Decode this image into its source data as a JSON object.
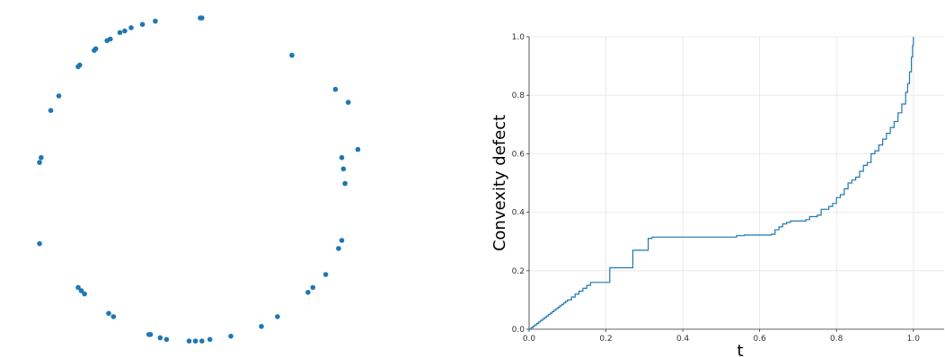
{
  "chart_data": [
    {
      "type": "scatter",
      "title": "",
      "xlabel": "",
      "ylabel": "",
      "axes_visible": false,
      "xlim": [
        -1.05,
        1.05
      ],
      "ylim": [
        -1.05,
        1.05
      ],
      "color": "#1f77b4",
      "points": [
        [
          0.0,
          1.0
        ],
        [
          0.01,
          1.0
        ],
        [
          -0.28,
          0.98
        ],
        [
          -0.36,
          0.96
        ],
        [
          -0.43,
          0.94
        ],
        [
          -0.47,
          0.92
        ],
        [
          -0.5,
          0.91
        ],
        [
          -0.56,
          0.87
        ],
        [
          -0.58,
          0.86
        ],
        [
          -0.65,
          0.81
        ],
        [
          -0.66,
          0.8
        ],
        [
          -0.75,
          0.71
        ],
        [
          -0.76,
          0.7
        ],
        [
          -0.88,
          0.52
        ],
        [
          -0.93,
          0.43
        ],
        [
          -0.99,
          0.14
        ],
        [
          -1.0,
          0.11
        ],
        [
          -1.0,
          -0.39
        ],
        [
          -0.76,
          -0.66
        ],
        [
          -0.74,
          -0.68
        ],
        [
          -0.72,
          -0.7
        ],
        [
          -0.57,
          -0.82
        ],
        [
          -0.54,
          -0.84
        ],
        [
          -0.32,
          -0.95
        ],
        [
          -0.31,
          -0.95
        ],
        [
          -0.25,
          -0.97
        ],
        [
          -0.21,
          -0.98
        ],
        [
          -0.07,
          -0.99
        ],
        [
          -0.03,
          -0.99
        ],
        [
          0.01,
          -0.99
        ],
        [
          0.06,
          -0.98
        ],
        [
          0.19,
          -0.96
        ],
        [
          0.38,
          -0.9
        ],
        [
          0.48,
          -0.84
        ],
        [
          0.67,
          -0.69
        ],
        [
          0.7,
          -0.66
        ],
        [
          0.78,
          -0.58
        ],
        [
          0.86,
          -0.42
        ],
        [
          0.88,
          -0.37
        ],
        [
          0.98,
          0.19
        ],
        [
          0.92,
          0.48
        ],
        [
          0.84,
          0.56
        ],
        [
          0.57,
          0.77
        ],
        [
          0.9,
          -0.02
        ],
        [
          0.89,
          0.07
        ],
        [
          0.88,
          0.14
        ]
      ]
    },
    {
      "type": "line",
      "title": "",
      "xlabel": "t",
      "ylabel": "Convexity defect",
      "xlim": [
        0.0,
        1.08
      ],
      "ylim": [
        0.0,
        1.0
      ],
      "grid": true,
      "xticks": [
        0.0,
        0.2,
        0.4,
        0.6,
        0.8,
        1.0
      ],
      "xtick_labels": [
        "0.0",
        "0.2",
        "0.4",
        "0.6",
        "0.8",
        "1.0"
      ],
      "yticks": [
        0.0,
        0.2,
        0.4,
        0.6,
        0.8,
        1.0
      ],
      "ytick_labels": [
        "0.0",
        "0.2",
        "0.4",
        "0.6",
        "0.8",
        "1.0"
      ],
      "color": "#1f77b4",
      "series": [
        {
          "name": "",
          "x": [
            0.0,
            0.005,
            0.01,
            0.015,
            0.02,
            0.025,
            0.03,
            0.035,
            0.04,
            0.045,
            0.05,
            0.055,
            0.06,
            0.065,
            0.07,
            0.075,
            0.08,
            0.085,
            0.09,
            0.095,
            0.1,
            0.11,
            0.12,
            0.13,
            0.14,
            0.15,
            0.16,
            0.17,
            0.18,
            0.19,
            0.2,
            0.21,
            0.22,
            0.24,
            0.27,
            0.28,
            0.31,
            0.32,
            0.36,
            0.4,
            0.45,
            0.5,
            0.53,
            0.54,
            0.56,
            0.6,
            0.63,
            0.64,
            0.65,
            0.66,
            0.67,
            0.68,
            0.7,
            0.72,
            0.73,
            0.75,
            0.76,
            0.77,
            0.78,
            0.79,
            0.8,
            0.81,
            0.82,
            0.83,
            0.84,
            0.85,
            0.86,
            0.87,
            0.88,
            0.89,
            0.9,
            0.91,
            0.92,
            0.93,
            0.94,
            0.95,
            0.96,
            0.97,
            0.98,
            0.985,
            0.99,
            0.995,
            0.998,
            1.0
          ],
          "y": [
            0.0,
            0.005,
            0.01,
            0.015,
            0.02,
            0.025,
            0.03,
            0.035,
            0.04,
            0.045,
            0.05,
            0.055,
            0.06,
            0.065,
            0.07,
            0.075,
            0.08,
            0.085,
            0.09,
            0.095,
            0.1,
            0.11,
            0.12,
            0.13,
            0.14,
            0.15,
            0.16,
            0.16,
            0.16,
            0.16,
            0.16,
            0.21,
            0.21,
            0.21,
            0.27,
            0.27,
            0.31,
            0.315,
            0.315,
            0.315,
            0.315,
            0.315,
            0.315,
            0.32,
            0.322,
            0.322,
            0.325,
            0.34,
            0.35,
            0.36,
            0.365,
            0.37,
            0.37,
            0.375,
            0.385,
            0.39,
            0.41,
            0.41,
            0.42,
            0.43,
            0.45,
            0.46,
            0.48,
            0.5,
            0.51,
            0.52,
            0.54,
            0.56,
            0.57,
            0.6,
            0.61,
            0.63,
            0.65,
            0.67,
            0.69,
            0.71,
            0.74,
            0.77,
            0.81,
            0.84,
            0.88,
            0.93,
            0.97,
            1.0
          ]
        }
      ]
    }
  ]
}
